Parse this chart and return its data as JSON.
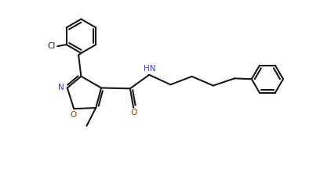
{
  "background_color": "#ffffff",
  "line_color": "#1a1a1a",
  "n_color": "#4040c0",
  "o_color": "#8b4500",
  "cl_color": "#1a1a1a",
  "line_width": 1.5,
  "figsize": [
    3.99,
    2.24
  ],
  "dpi": 100,
  "xlim": [
    0,
    9.5
  ],
  "ylim": [
    0,
    5.3
  ]
}
